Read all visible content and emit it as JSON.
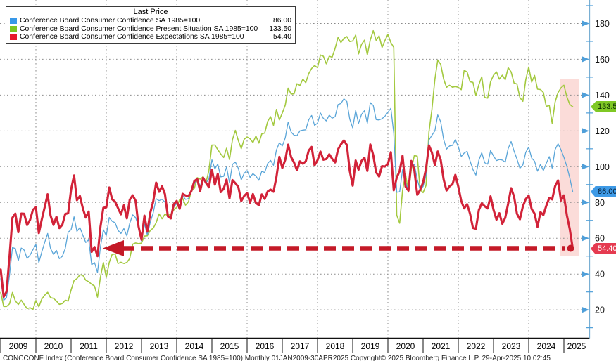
{
  "legend": {
    "title": "Last Price",
    "items": [
      {
        "label": "Conference Board Consumer Confidence SA 1985=100",
        "value": "86.00",
        "swatch_color": "#3898e8"
      },
      {
        "label": "Conference Board Consumer Confidence Present Situation SA 1985=100",
        "value": "133.50",
        "swatch_color": "#7dc623"
      },
      {
        "label": "Conference Board Consumer Confidence Expectations SA 1985=100",
        "value": "54.40",
        "swatch_color": "#e8192c"
      }
    ]
  },
  "y_axis": {
    "side": "right",
    "labeled_ticks": [
      20,
      40,
      60,
      80,
      100,
      120,
      140,
      160,
      180
    ],
    "minor_ticks": [
      10,
      30,
      50,
      70,
      90,
      110,
      130,
      150,
      170,
      190
    ],
    "gridlines": true
  },
  "x_axis": {
    "years": [
      "2009",
      "2010",
      "2011",
      "2012",
      "2013",
      "2014",
      "2015",
      "2016",
      "2017",
      "2018",
      "2019",
      "2020",
      "2021",
      "2022",
      "2023",
      "2024",
      "2025"
    ],
    "gridline_years": [
      2010,
      2012,
      2014,
      2016,
      2018,
      2020,
      2022,
      2024
    ]
  },
  "badges": [
    {
      "text": "86.00",
      "num": 86.0,
      "bg": "#3e9ae6",
      "fg": "#001a33"
    },
    {
      "text": "133.50",
      "num": 133.5,
      "bg": "#7fc824",
      "fg": "#0a2800"
    },
    {
      "text": "54.40",
      "num": 54.4,
      "bg": "#e53a50",
      "fg": "#ffffff"
    }
  ],
  "annotations": {
    "dashed_arrow": {
      "description": "red dashed arrow from April 2025 Expectations value back to 2011 levels",
      "y_value": 54.4,
      "points_to_year": 2012,
      "color": "#c41927"
    },
    "highlight_band": {
      "description": "pink band highlighting Dec 2024 - Apr 2025",
      "color": "rgba(239,128,120,0.28)"
    },
    "end_dot": {
      "description": "red dot at last Expectations value",
      "value": 54.4
    }
  },
  "footer": {
    "text": "CONCCONF Index (Conference Board Consumer Confidence SA 1985=100) Monthly 01JAN2009-30APR2025 Copyright© 2025 Bloomberg Finance L.P. 29-Apr-2025 10:02:45"
  },
  "colors": {
    "line_blue": "#5aa5d8",
    "line_green": "#a3c93f",
    "line_red": "#d22339",
    "grid": "#8a8a8a",
    "axis_blue": "#79afd3",
    "tick_arrow": "#4f9fd9",
    "x_axis_black": "#111111"
  },
  "chart_data": {
    "type": "line",
    "title": "Last Price",
    "frequency": "monthly",
    "x_start": "2009-01",
    "x_end": "2025-04",
    "x_years": [
      2009,
      2010,
      2011,
      2012,
      2013,
      2014,
      2015,
      2016,
      2017,
      2018,
      2019,
      2020,
      2021,
      2022,
      2023,
      2024,
      2025
    ],
    "y_axis_position": "right",
    "y_ticks": [
      20,
      40,
      60,
      80,
      100,
      120,
      140,
      160,
      180
    ],
    "ylim_visible": [
      5,
      193
    ],
    "grid": true,
    "legend_position": "top-left",
    "series": [
      {
        "name": "Conference Board Consumer Confidence SA 1985=100",
        "color": "#5aa5d8",
        "last": 86.0,
        "values": [
          37.4,
          25.3,
          26.9,
          39.2,
          54.8,
          54.3,
          47.4,
          54.5,
          53.4,
          48.7,
          50.6,
          53.6,
          56.5,
          46.4,
          52.3,
          57.7,
          62.7,
          54.3,
          51.0,
          53.2,
          48.6,
          49.9,
          54.3,
          63.4,
          64.8,
          72.0,
          63.8,
          66.0,
          61.7,
          57.6,
          59.2,
          45.2,
          46.4,
          40.9,
          55.2,
          64.8,
          61.5,
          71.6,
          69.5,
          68.7,
          64.4,
          62.7,
          65.4,
          61.3,
          68.4,
          73.1,
          71.5,
          66.7,
          58.4,
          68.0,
          61.9,
          69.0,
          74.3,
          82.1,
          81.0,
          81.8,
          80.2,
          72.4,
          72.0,
          77.5,
          79.4,
          78.3,
          83.9,
          81.7,
          82.2,
          86.4,
          90.3,
          93.4,
          89.0,
          94.1,
          91.0,
          93.1,
          103.8,
          98.8,
          101.4,
          94.3,
          94.6,
          99.8,
          91.0,
          101.3,
          102.6,
          99.1,
          92.6,
          96.3,
          97.8,
          94.0,
          96.1,
          94.7,
          92.4,
          97.4,
          96.7,
          101.8,
          103.5,
          100.8,
          109.4,
          113.3,
          111.6,
          116.1,
          124.9,
          119.4,
          117.6,
          117.3,
          120.0,
          120.4,
          120.6,
          126.2,
          128.6,
          123.1,
          124.3,
          130.0,
          127.0,
          125.6,
          128.8,
          127.1,
          127.9,
          134.7,
          135.3,
          137.9,
          136.4,
          126.6,
          121.7,
          131.4,
          124.2,
          129.2,
          131.3,
          124.3,
          135.8,
          134.2,
          126.3,
          126.1,
          126.8,
          128.2,
          130.4,
          132.6,
          118.8,
          85.7,
          85.9,
          98.3,
          91.7,
          86.3,
          101.3,
          101.4,
          92.9,
          87.1,
          88.9,
          95.2,
          114.9,
          117.5,
          120.0,
          128.9,
          125.1,
          115.2,
          109.8,
          111.6,
          111.9,
          115.2,
          111.1,
          105.7,
          107.6,
          108.6,
          103.2,
          98.4,
          95.3,
          103.6,
          107.8,
          102.2,
          101.4,
          109.0,
          106.0,
          103.4,
          104.0,
          103.7,
          102.5,
          110.1,
          114.0,
          108.7,
          104.3,
          99.1,
          101.0,
          108.0,
          110.9,
          104.8,
          103.1,
          97.5,
          101.3,
          97.8,
          101.9,
          105.6,
          99.2,
          109.6,
          112.8,
          109.5,
          105.3,
          100.1,
          93.9,
          86.0
        ]
      },
      {
        "name": "Conference Board Consumer Confidence Present Situation SA 1985=100",
        "color": "#a3c93f",
        "last": 133.5,
        "values": [
          29.7,
          21.9,
          21.9,
          23.3,
          29.7,
          25.0,
          23.0,
          25.4,
          23.0,
          20.7,
          21.2,
          20.2,
          25.2,
          21.7,
          26.0,
          28.2,
          29.8,
          26.8,
          26.4,
          24.9,
          23.1,
          23.5,
          25.4,
          24.9,
          31.1,
          36.4,
          37.5,
          39.6,
          39.3,
          36.6,
          35.7,
          34.3,
          33.3,
          27.1,
          38.3,
          46.5,
          38.1,
          46.5,
          51.0,
          51.2,
          45.9,
          46.6,
          45.9,
          46.5,
          48.7,
          56.7,
          57.4,
          57.0,
          57.3,
          61.2,
          61.4,
          64.4,
          65.7,
          68.7,
          73.6,
          70.9,
          73.5,
          72.6,
          73.5,
          75.8,
          77.3,
          81.7,
          82.5,
          78.5,
          80.4,
          86.3,
          87.9,
          93.9,
          93.0,
          94.4,
          91.3,
          98.0,
          112.1,
          112.1,
          109.5,
          107.1,
          105.1,
          110.3,
          104.0,
          115.1,
          120.3,
          114.6,
          110.1,
          115.3,
          116.6,
          115.6,
          113.5,
          117.1,
          113.2,
          118.3,
          118.8,
          125.3,
          127.9,
          123.1,
          132.0,
          126.1,
          130.0,
          134.4,
          143.9,
          140.6,
          140.7,
          146.3,
          145.4,
          148.9,
          146.9,
          152.0,
          154.9,
          156.5,
          155.3,
          162.4,
          161.7,
          157.5,
          161.7,
          161.2,
          166.1,
          172.2,
          169.4,
          171.7,
          172.7,
          169.9,
          170.2,
          173.5,
          163.0,
          168.3,
          170.7,
          162.5,
          170.9,
          176.0,
          170.6,
          173.1,
          166.6,
          170.5,
          173.9,
          169.3,
          166.7,
          73.0,
          68.4,
          86.7,
          95.9,
          85.8,
          98.5,
          106.2,
          105.9,
          87.2,
          85.5,
          89.6,
          119.4,
          131.9,
          148.7,
          159.6,
          157.2,
          148.9,
          144.3,
          145.5,
          144.4,
          144.8,
          144.3,
          143.0,
          153.8,
          152.9,
          147.4,
          147.1,
          139.7,
          145.8,
          150.2,
          138.7,
          138.3,
          147.4,
          151.1,
          153.0,
          148.9,
          151.1,
          148.6,
          155.3,
          153.0,
          146.7,
          146.2,
          138.6,
          136.5,
          148.5,
          155.7,
          147.2,
          151.0,
          143.3,
          143.1,
          141.5,
          133.6,
          134.3,
          124.3,
          136.1,
          141.4,
          144.0,
          145.5,
          139.0,
          134.8,
          133.5
        ]
      },
      {
        "name": "Conference Board Consumer Confidence Expectations SA 1985=100",
        "color": "#d22339",
        "last": 54.4,
        "values": [
          42.5,
          27.3,
          30.2,
          49.5,
          71.5,
          73.8,
          63.4,
          73.8,
          73.7,
          67.4,
          70.3,
          75.9,
          77.3,
          62.9,
          70.4,
          77.4,
          84.6,
          72.7,
          67.5,
          72.0,
          65.7,
          67.5,
          73.6,
          74.0,
          87.3,
          95.1,
          81.3,
          83.6,
          76.7,
          71.6,
          74.9,
          52.4,
          55.1,
          50.0,
          66.4,
          77.0,
          77.3,
          88.4,
          81.8,
          80.4,
          76.8,
          73.4,
          78.4,
          71.1,
          81.5,
          84.0,
          80.9,
          66.6,
          59.2,
          72.6,
          63.7,
          74.3,
          80.6,
          91.1,
          86.0,
          89.0,
          84.7,
          72.2,
          71.1,
          79.0,
          80.8,
          76.5,
          84.8,
          83.9,
          83.5,
          86.4,
          91.9,
          93.1,
          86.4,
          93.8,
          90.9,
          88.5,
          98.3,
          90.0,
          96.0,
          85.8,
          87.7,
          92.8,
          82.3,
          92.5,
          90.8,
          88.7,
          80.8,
          83.6,
          85.3,
          79.9,
          84.7,
          79.7,
          78.5,
          84.5,
          82.0,
          86.1,
          87.2,
          86.0,
          94.3,
          105.5,
          99.3,
          103.9,
          112.3,
          105.4,
          102.3,
          98.0,
          103.0,
          101.7,
          103.0,
          109.0,
          111.0,
          100.8,
          103.6,
          108.4,
          103.9,
          104.3,
          106.9,
          104.4,
          102.4,
          109.7,
          112.5,
          114.6,
          112.1,
          97.7,
          89.4,
          103.4,
          98.3,
          103.2,
          105.0,
          97.6,
          112.4,
          106.4,
          96.8,
          94.5,
          100.3,
          100.1,
          101.4,
          108.1,
          86.8,
          93.8,
          97.6,
          106.1,
          88.9,
          86.6,
          103.2,
          98.2,
          84.3,
          87.0,
          91.2,
          99.0,
          111.9,
          107.9,
          100.9,
          108.5,
          103.8,
          92.8,
          86.7,
          89.0,
          90.2,
          95.4,
          88.8,
          80.8,
          76.7,
          79.0,
          73.7,
          65.8,
          65.3,
          75.8,
          79.5,
          77.9,
          76.7,
          83.4,
          76.0,
          70.4,
          74.0,
          68.1,
          71.5,
          79.3,
          88.0,
          83.3,
          73.7,
          70.6,
          77.8,
          81.9,
          83.8,
          76.3,
          73.8,
          66.4,
          74.6,
          73.0,
          78.2,
          82.5,
          81.7,
          89.1,
          92.3,
          81.1,
          83.9,
          72.9,
          65.2,
          54.4
        ]
      }
    ],
    "annotations": [
      {
        "type": "horizontal_dashed_arrow",
        "y": 54.4,
        "from_x": "2025-04",
        "to_x": "2012-01",
        "color": "#c41927"
      },
      {
        "type": "vertical_highlight_band",
        "from_x": "2024-12",
        "to_x": "2025-04"
      },
      {
        "type": "point_marker",
        "x": "2025-04",
        "y": 54.4,
        "color": "#c41927"
      }
    ]
  }
}
